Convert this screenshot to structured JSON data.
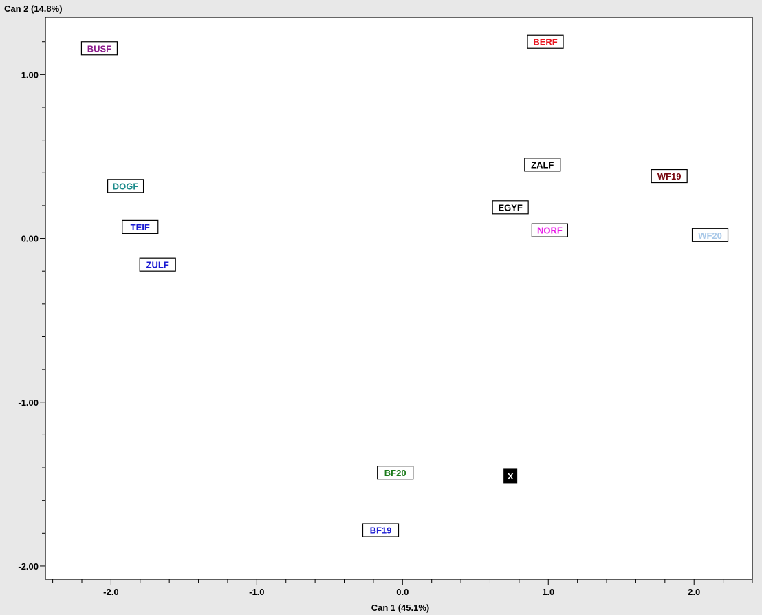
{
  "chart_data": {
    "type": "scatter",
    "title": "",
    "xlabel": "Can 1 (45.1%)",
    "ylabel": "Can 2 (14.8%)",
    "xlim": [
      -2.45,
      2.4
    ],
    "ylim": [
      -2.08,
      1.35
    ],
    "grid": false,
    "x_ticks": [
      {
        "value": -2.0,
        "label": "-2.0"
      },
      {
        "value": -1.0,
        "label": "-1.0"
      },
      {
        "value": 0.0,
        "label": "0.0"
      },
      {
        "value": 1.0,
        "label": "1.0"
      },
      {
        "value": 2.0,
        "label": "2.0"
      }
    ],
    "y_ticks": [
      {
        "value": 1.0,
        "label": "1.00"
      },
      {
        "value": 0.0,
        "label": "0.00"
      },
      {
        "value": -1.0,
        "label": "-1.00"
      },
      {
        "value": -2.0,
        "label": "-2.00"
      }
    ],
    "points": [
      {
        "label": "BUSF",
        "x": -2.08,
        "y": 1.16,
        "color": "#8b1a8b"
      },
      {
        "label": "BERF",
        "x": 0.98,
        "y": 1.2,
        "color": "#e8141e"
      },
      {
        "label": "ZALF",
        "x": 0.96,
        "y": 0.45,
        "color": "#000000"
      },
      {
        "label": "WF19",
        "x": 1.83,
        "y": 0.38,
        "color": "#7a0a12"
      },
      {
        "label": "DOGF",
        "x": -1.9,
        "y": 0.32,
        "color": "#1a8a8a"
      },
      {
        "label": "EGYF",
        "x": 0.74,
        "y": 0.19,
        "color": "#000000"
      },
      {
        "label": "TEIF",
        "x": -1.8,
        "y": 0.07,
        "color": "#1a1ad2"
      },
      {
        "label": "NORF",
        "x": 1.01,
        "y": 0.05,
        "color": "#e81ee8"
      },
      {
        "label": "WF20",
        "x": 2.11,
        "y": 0.02,
        "color": "#a8c8e8"
      },
      {
        "label": "ZULF",
        "x": -1.68,
        "y": -0.16,
        "color": "#1a1ad2"
      },
      {
        "label": "BF20",
        "x": -0.05,
        "y": -1.43,
        "color": "#1a7a1a"
      },
      {
        "label": "X",
        "x": 0.74,
        "y": -1.45,
        "color": "#ffffff",
        "filled": true
      },
      {
        "label": "BF19",
        "x": -0.15,
        "y": -1.78,
        "color": "#1a1ad2"
      }
    ]
  }
}
